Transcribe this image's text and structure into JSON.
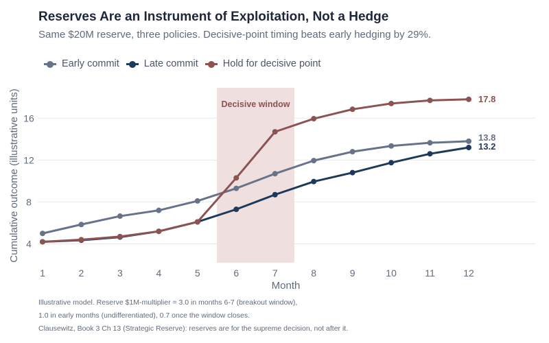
{
  "chart_data": {
    "type": "line",
    "title": "Reserves Are an Instrument of Exploitation, Not a Hedge",
    "subtitle": "Same $20M reserve, three policies. Decisive-point timing beats early hedging by 29%.",
    "xlabel": "Month",
    "ylabel": "Cumulative outcome (illustrative units)",
    "x": [
      1,
      2,
      3,
      4,
      5,
      6,
      7,
      8,
      9,
      10,
      11,
      12
    ],
    "xlim": [
      1,
      12
    ],
    "ylim": [
      2.2,
      18.9
    ],
    "yticks": [
      4,
      8,
      12,
      16
    ],
    "grid": true,
    "legend_position": "top-left",
    "series": [
      {
        "name": "Early commit",
        "color": "#667389",
        "values": [
          5.0,
          5.85,
          6.65,
          7.2,
          8.1,
          9.3,
          10.7,
          11.95,
          12.8,
          13.35,
          13.65,
          13.8
        ],
        "end_label": "13.8"
      },
      {
        "name": "Late commit",
        "color": "#1d3a5c",
        "values": [
          4.2,
          4.35,
          4.65,
          5.2,
          6.1,
          7.3,
          8.7,
          9.95,
          10.8,
          11.75,
          12.6,
          13.2
        ],
        "end_label": "13.2"
      },
      {
        "name": "Hold for decisive point",
        "color": "#8c5352",
        "values": [
          4.2,
          4.4,
          4.7,
          5.2,
          6.1,
          10.3,
          14.7,
          15.95,
          16.85,
          17.4,
          17.7,
          17.8
        ],
        "end_label": "17.8"
      }
    ],
    "annotations": [
      {
        "label": "Decisive window",
        "x_range": [
          5.5,
          7.5
        ],
        "color": "#f0dfdf",
        "text_color": "#8c5352"
      }
    ]
  },
  "footnotes": [
    "Illustrative model. Reserve $1M-multiplier = 3.0 in months 6-7 (breakout window),",
    "1.0 in early months (undifferentiated), 0.7 once the window closes.",
    "Clausewitz, Book 3 Ch 13 (Strategic Reserve): reserves are for the supreme decision, not after it."
  ]
}
